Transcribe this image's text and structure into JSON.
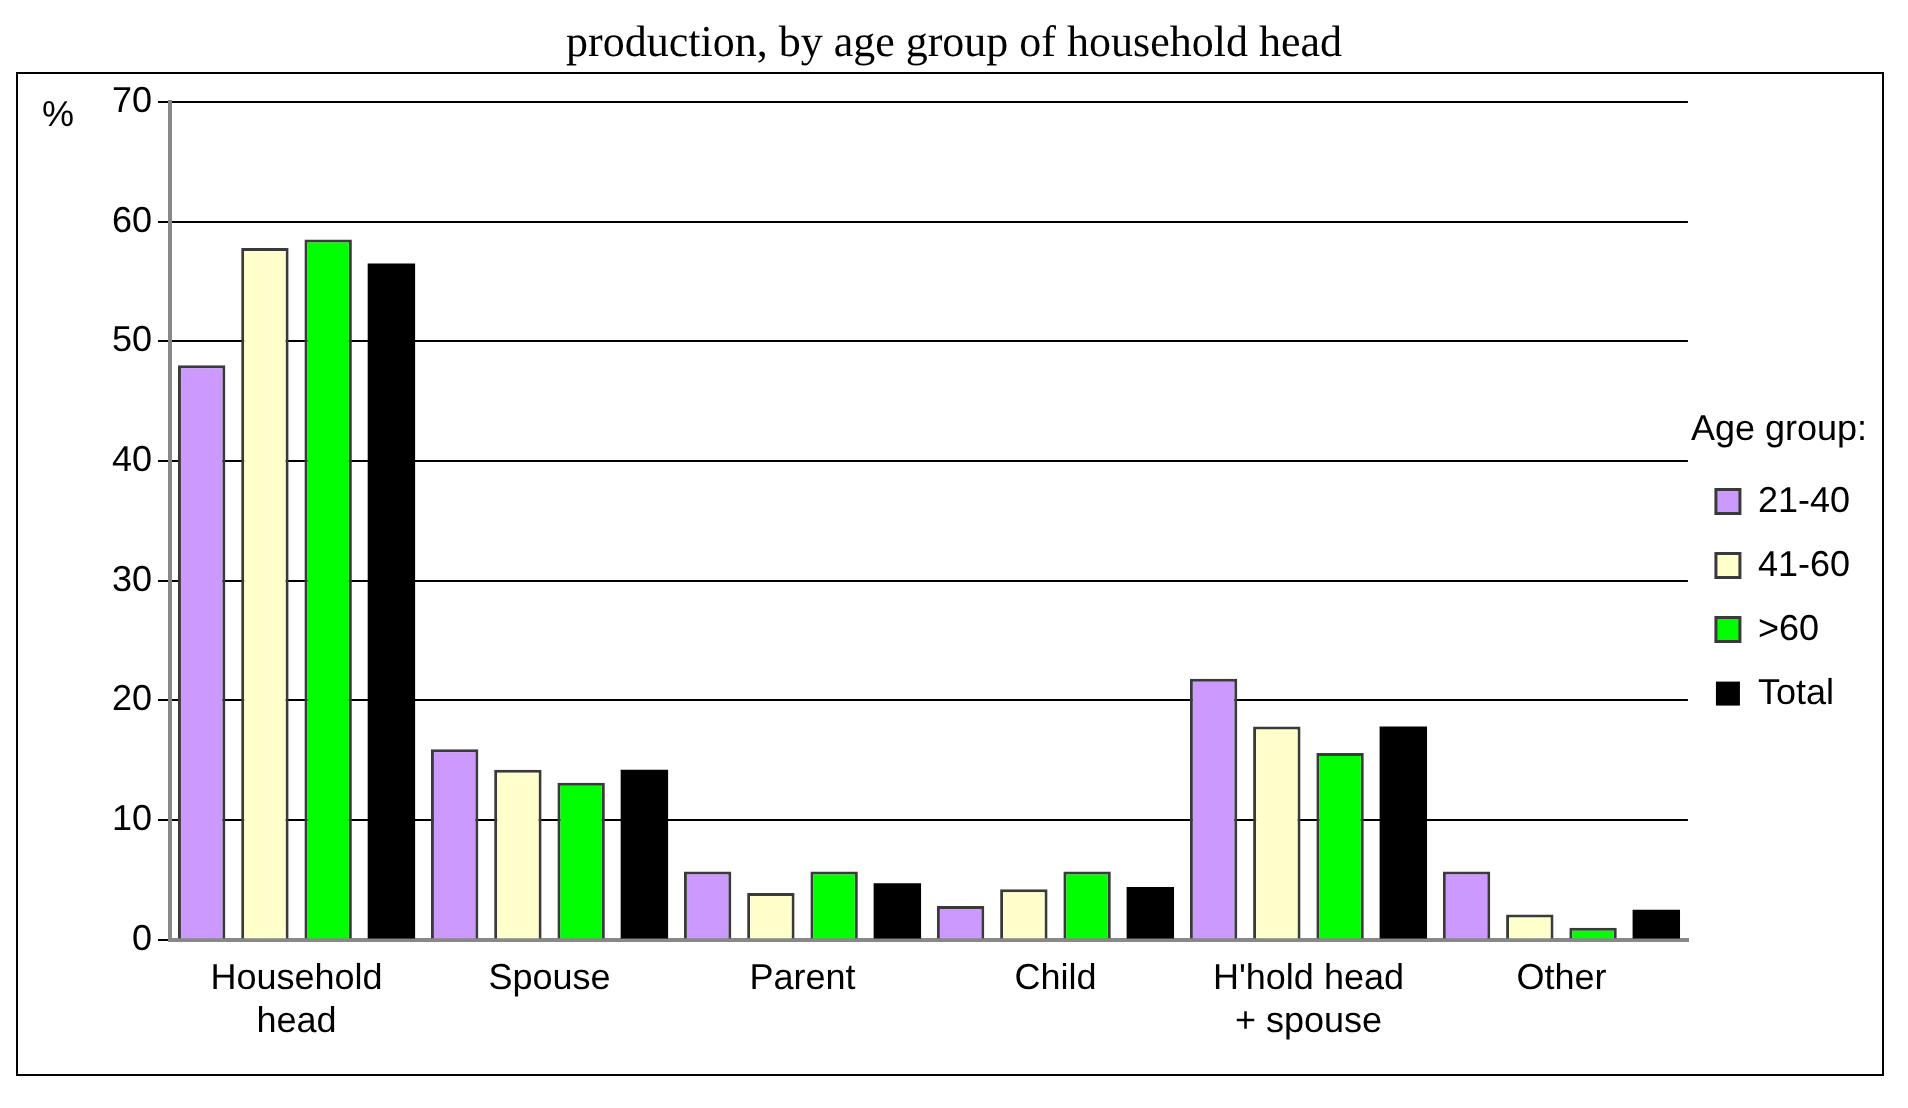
{
  "chart_data": {
    "type": "bar",
    "title": "production, by age group of household head",
    "ylabel": "%",
    "legend_title": "Age group:",
    "categories": [
      "Household head",
      "Spouse",
      "Parent",
      "Child",
      "H'hold head + spouse",
      "Other"
    ],
    "series": [
      {
        "name": "21-40",
        "color": "#cc99ff",
        "values": [
          48.0,
          15.9,
          5.7,
          2.8,
          21.8,
          5.7
        ]
      },
      {
        "name": "41-60",
        "color": "#ffffcc",
        "values": [
          57.8,
          14.2,
          3.9,
          4.2,
          17.8,
          2.1
        ]
      },
      {
        "name": ">60",
        "color": "#00ff00",
        "values": [
          58.5,
          13.1,
          5.7,
          5.7,
          15.6,
          1.0
        ]
      },
      {
        "name": "Total",
        "color": "#000000",
        "values": [
          56.5,
          14.2,
          4.7,
          4.4,
          17.8,
          2.5
        ]
      }
    ],
    "ylim": [
      0,
      70
    ],
    "yticks": [
      0,
      10,
      20,
      30,
      40,
      50,
      60,
      70
    ],
    "grid": "y",
    "legend": "right"
  }
}
